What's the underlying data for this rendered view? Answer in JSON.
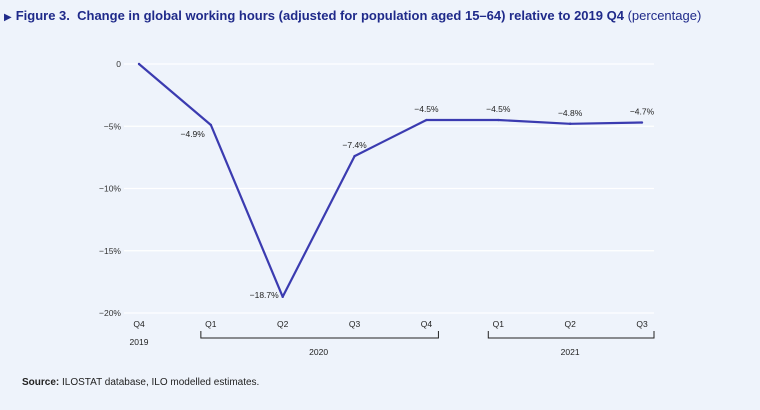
{
  "title": {
    "label": "Figure 3.",
    "text": "Change in global working hours (adjusted for population aged 15–64) relative to 2019 Q4",
    "unit": "(percentage)"
  },
  "source": {
    "label": "Source:",
    "text": "ILOSTAT database, ILO modelled estimates."
  },
  "colors": {
    "line": "#3b3bb0",
    "title": "#1f2a8a",
    "background": "#eef3fb"
  },
  "chart_data": {
    "type": "line",
    "categories": [
      "Q4",
      "Q1",
      "Q2",
      "Q3",
      "Q4",
      "Q1",
      "Q2",
      "Q3"
    ],
    "year_groups": [
      {
        "label": "2019",
        "start": 0,
        "end": 0
      },
      {
        "label": "2020",
        "start": 1,
        "end": 4
      },
      {
        "label": "2021",
        "start": 5,
        "end": 7
      }
    ],
    "values": [
      0,
      -4.9,
      -18.7,
      -7.4,
      -4.5,
      -4.5,
      -4.8,
      -4.7
    ],
    "data_labels": [
      "",
      "−4.9%",
      "−18.7%",
      "−7.4%",
      "−4.5%",
      "−4.5%",
      "−4.8%",
      "−4.7%"
    ],
    "y_ticks": [
      0,
      -5,
      -10,
      -15,
      -20
    ],
    "y_tick_labels": [
      "0",
      "−5%",
      "−10%",
      "−15%",
      "−20%"
    ],
    "ylim": [
      -20,
      0
    ],
    "grid": true
  }
}
